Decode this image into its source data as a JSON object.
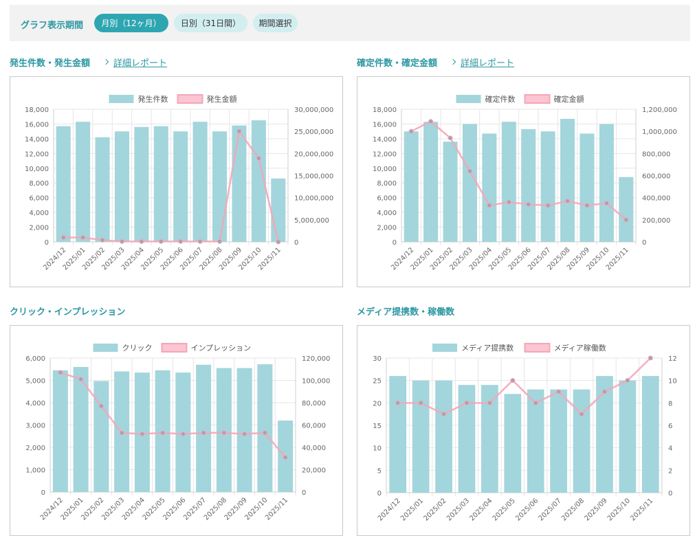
{
  "period": {
    "title": "グラフ表示期間",
    "options": [
      "月別（12ヶ月）",
      "日別（31日間）",
      "期間選択"
    ],
    "active": 0
  },
  "panels": [
    {
      "title": "発生件数・発生金額",
      "link": "詳細レポート"
    },
    {
      "title": "確定件数・確定金額",
      "link": "詳細レポート"
    },
    {
      "title": "クリック・インプレッション",
      "link": ""
    },
    {
      "title": "メディア提携数・稼働数",
      "link": ""
    }
  ],
  "colors": {
    "bar": "#a3d5dc",
    "line": "#f4a6b8",
    "line_point": "#a3a3b0",
    "accent": "#2c97a1"
  },
  "chart_data": [
    {
      "type": "bar",
      "categories": [
        "2024/12",
        "2025/01",
        "2025/02",
        "2025/03",
        "2025/04",
        "2025/05",
        "2025/06",
        "2025/07",
        "2025/08",
        "2025/09",
        "2025/10",
        "2025/11"
      ],
      "series": [
        {
          "name": "発生件数",
          "type": "bar",
          "axis": "left",
          "values": [
            15700,
            16300,
            14200,
            15000,
            15600,
            15700,
            15000,
            16300,
            15000,
            15800,
            16500,
            8600
          ]
        },
        {
          "name": "発生金額",
          "type": "line",
          "axis": "right",
          "values": [
            1000000,
            1000000,
            400000,
            100000,
            100000,
            100000,
            100000,
            100000,
            100000,
            25000000,
            18900000,
            0
          ]
        }
      ],
      "yleft": {
        "min": 0,
        "max": 18000,
        "ticks": [
          "0",
          "2,000",
          "4,000",
          "6,000",
          "8,000",
          "10,000",
          "12,000",
          "14,000",
          "16,000",
          "18,000"
        ]
      },
      "yright": {
        "min": 0,
        "max": 30000000,
        "ticks": [
          "0",
          "5,000,000",
          "10,000,000",
          "15,000,000",
          "20,000,000",
          "25,000,000",
          "30,000,000"
        ]
      },
      "legend": "top"
    },
    {
      "type": "bar",
      "categories": [
        "2024/12",
        "2025/01",
        "2025/02",
        "2025/03",
        "2025/04",
        "2025/05",
        "2025/06",
        "2025/07",
        "2025/08",
        "2025/09",
        "2025/10",
        "2025/11"
      ],
      "series": [
        {
          "name": "確定件数",
          "type": "bar",
          "axis": "left",
          "values": [
            15000,
            16300,
            13600,
            16000,
            14700,
            16300,
            15300,
            15000,
            16700,
            14700,
            16000,
            8800
          ]
        },
        {
          "name": "確定金額",
          "type": "line",
          "axis": "right",
          "values": [
            1000000,
            1090000,
            940000,
            640000,
            330000,
            360000,
            340000,
            330000,
            370000,
            330000,
            350000,
            200000
          ]
        }
      ],
      "yleft": {
        "min": 0,
        "max": 18000,
        "ticks": [
          "0",
          "2,000",
          "4,000",
          "6,000",
          "8,000",
          "10,000",
          "12,000",
          "14,000",
          "16,000",
          "18,000"
        ]
      },
      "yright": {
        "min": 0,
        "max": 1200000,
        "ticks": [
          "0",
          "200,000",
          "400,000",
          "600,000",
          "800,000",
          "1,000,000",
          "1,200,000"
        ]
      },
      "legend": "top"
    },
    {
      "type": "bar",
      "categories": [
        "2024/12",
        "2025/01",
        "2025/02",
        "2025/03",
        "2025/04",
        "2025/05",
        "2025/06",
        "2025/07",
        "2025/08",
        "2025/09",
        "2025/10",
        "2025/11"
      ],
      "series": [
        {
          "name": "クリック",
          "type": "bar",
          "axis": "left",
          "values": [
            5450,
            5600,
            4970,
            5400,
            5350,
            5450,
            5350,
            5700,
            5550,
            5550,
            5720,
            3200
          ]
        },
        {
          "name": "インプレッション",
          "type": "line",
          "axis": "right",
          "values": [
            107000,
            101000,
            77000,
            53000,
            52000,
            53000,
            52000,
            53000,
            53000,
            52000,
            53000,
            31000
          ]
        }
      ],
      "yleft": {
        "min": 0,
        "max": 6000,
        "ticks": [
          "0",
          "1,000",
          "2,000",
          "3,000",
          "4,000",
          "5,000",
          "6,000"
        ]
      },
      "yright": {
        "min": 0,
        "max": 120000,
        "ticks": [
          "0",
          "20,000",
          "40,000",
          "60,000",
          "80,000",
          "100,000",
          "120,000"
        ]
      },
      "legend": "top"
    },
    {
      "type": "bar",
      "categories": [
        "2024/12",
        "2025/01",
        "2025/02",
        "2025/03",
        "2025/04",
        "2025/05",
        "2025/06",
        "2025/07",
        "2025/08",
        "2025/09",
        "2025/10",
        "2025/11"
      ],
      "series": [
        {
          "name": "メディア提携数",
          "type": "bar",
          "axis": "left",
          "values": [
            26,
            25,
            25,
            24,
            24,
            22,
            23,
            23,
            23,
            26,
            25,
            26
          ]
        },
        {
          "name": "メディア稼働数",
          "type": "line",
          "axis": "right",
          "values": [
            8,
            8,
            7,
            8,
            8,
            10,
            8,
            9,
            7,
            9,
            10,
            12
          ]
        }
      ],
      "yleft": {
        "min": 0,
        "max": 30,
        "ticks": [
          "0",
          "5",
          "10",
          "15",
          "20",
          "25",
          "30"
        ]
      },
      "yright": {
        "min": 0,
        "max": 12,
        "ticks": [
          "0",
          "2",
          "4",
          "6",
          "8",
          "10",
          "12"
        ]
      },
      "legend": "top"
    }
  ]
}
